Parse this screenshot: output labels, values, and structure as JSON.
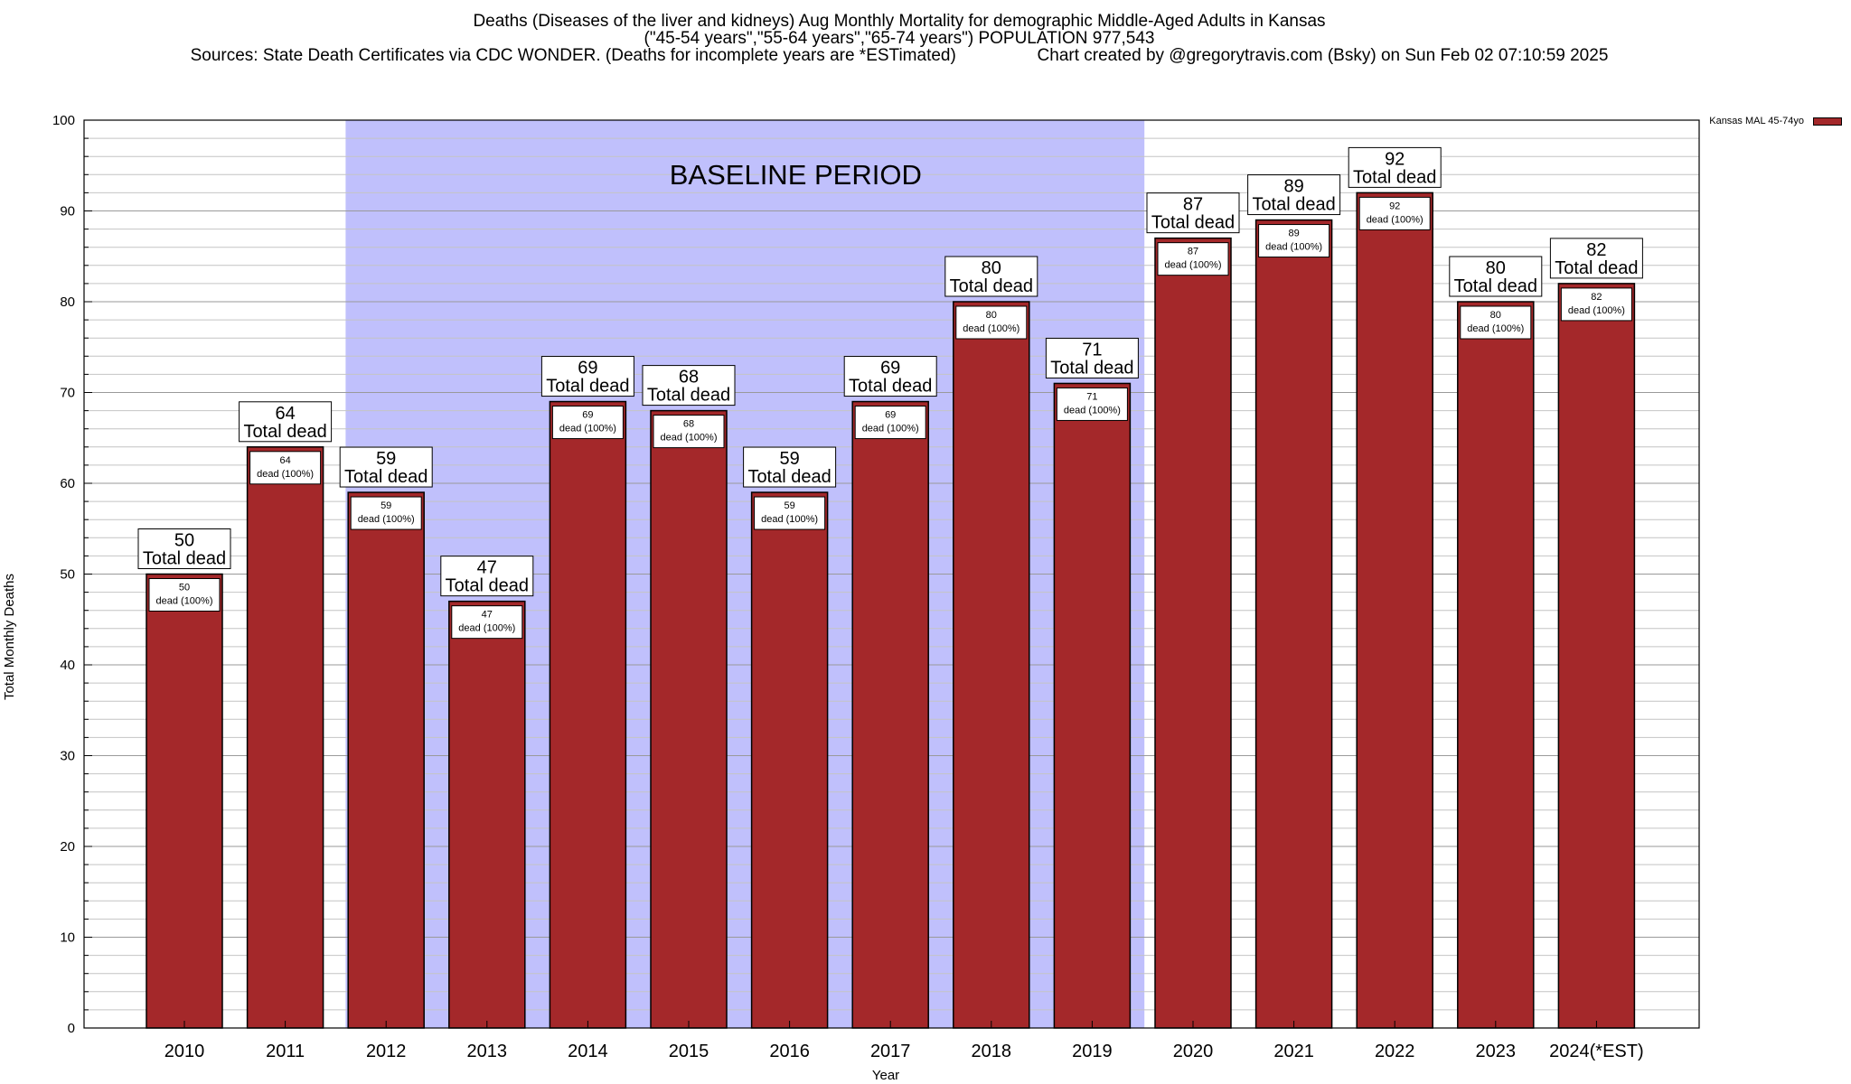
{
  "title": {
    "line1": "Deaths (Diseases of the liver and kidneys) Aug Monthly Mortality for demographic Middle-Aged Adults in Kansas",
    "line2": "(\"45-54 years\",\"55-64 years\",\"65-74 years\") POPULATION 977,543",
    "line3": "Sources: State Death Certificates via CDC WONDER. (Deaths for incomplete years are *ESTimated)                 Chart created by @gregorytravis.com (Bsky) on Sun Feb 02 07:10:59 2025"
  },
  "legend": {
    "label": "Kansas MAL 45-74yo",
    "color": "#a4282a"
  },
  "chart_data": {
    "type": "bar",
    "title": "Deaths (Diseases of the liver and kidneys) Aug Monthly Mortality for demographic Middle-Aged Adults in Kansas",
    "xlabel": "Year",
    "ylabel": "Total Monthly Deaths",
    "ylim": [
      0,
      100
    ],
    "y_major_ticks": [
      0,
      10,
      20,
      30,
      40,
      50,
      60,
      70,
      80,
      90,
      100
    ],
    "grid": true,
    "categories": [
      "2010",
      "2011",
      "2012",
      "2013",
      "2014",
      "2015",
      "2016",
      "2017",
      "2018",
      "2019",
      "2020",
      "2021",
      "2022",
      "2023",
      "2024(*EST)"
    ],
    "series": [
      {
        "name": "Kansas MAL 45-74yo",
        "values": [
          50,
          64,
          59,
          47,
          69,
          68,
          59,
          69,
          80,
          71,
          87,
          89,
          92,
          80,
          82
        ]
      }
    ],
    "bar_label_suffix": "Total dead",
    "inner_label_suffix": "dead (100%)",
    "baseline_period": {
      "label": "BASELINE PERIOD",
      "from": "2012",
      "to": "2019"
    },
    "colors": {
      "bar": "#a4282a",
      "baseline": "#c0c0fc"
    }
  }
}
